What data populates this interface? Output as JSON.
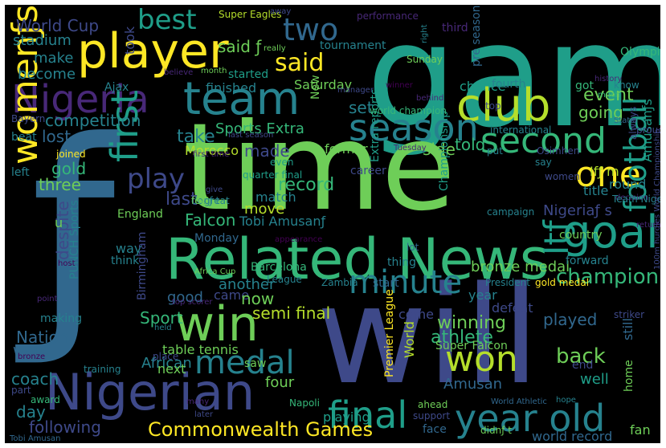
{
  "palette": [
    "#fde725",
    "#b5de2b",
    "#6ece58",
    "#35b779",
    "#1f9e89",
    "#26828e",
    "#31688e",
    "#3e4989",
    "#482878",
    "#440154"
  ],
  "words": [
    {
      "text": "game",
      "color": "#1f9e89"
    },
    {
      "text": "time",
      "color": "#6ece58"
    },
    {
      "text": "will",
      "color": "#3e4989"
    },
    {
      "text": "ƒ",
      "color": "#31688e"
    },
    {
      "text": "Related News",
      "color": "#35b779"
    },
    {
      "text": "player",
      "color": "#fde725"
    },
    {
      "text": "Nigerian",
      "color": "#3e4989"
    },
    {
      "text": "team",
      "color": "#26828e"
    },
    {
      "text": "Nigeria",
      "color": "#482878"
    },
    {
      "text": "club",
      "color": "#b5de2b"
    },
    {
      "text": "win",
      "color": "#6ece58"
    },
    {
      "text": "goal",
      "color": "#1f9e89"
    },
    {
      "text": "final",
      "color": "#1f9e89"
    },
    {
      "text": "year old",
      "color": "#26828e"
    },
    {
      "text": "season",
      "color": "#26828e"
    },
    {
      "text": "second",
      "color": "#35b779"
    },
    {
      "text": "one",
      "color": "#fde725"
    },
    {
      "text": "won",
      "color": "#b5de2b"
    },
    {
      "text": "medal",
      "color": "#26828e"
    },
    {
      "text": "first",
      "color": "#1f9e89"
    },
    {
      "text": "womenƒs",
      "color": "#fde725"
    },
    {
      "text": "minute",
      "color": "#26828e"
    },
    {
      "text": "football",
      "color": "#1f9e89"
    },
    {
      "text": "Itƒ",
      "color": "#1f9e89"
    },
    {
      "text": "best",
      "color": "#1f9e89"
    },
    {
      "text": "two",
      "color": "#31688e"
    },
    {
      "text": "said",
      "color": "#fde725"
    },
    {
      "text": "play",
      "color": "#3e4989"
    },
    {
      "text": "Commonwealth Games",
      "color": "#fde725"
    },
    {
      "text": "champion",
      "color": "#35b779"
    },
    {
      "text": "back",
      "color": "#6ece58"
    },
    {
      "text": "World Cup",
      "color": "#3e4989"
    },
    {
      "text": "stadium",
      "color": "#26828e"
    },
    {
      "text": "said ƒ",
      "color": "#6ece58"
    },
    {
      "text": "tournament",
      "color": "#26828e"
    },
    {
      "text": "make",
      "color": "#26828e"
    },
    {
      "text": "become",
      "color": "#26828e"
    },
    {
      "text": "took",
      "color": "#3e4989"
    },
    {
      "text": "started",
      "color": "#1f9e89"
    },
    {
      "text": "finished",
      "color": "#26828e"
    },
    {
      "text": "Saturday",
      "color": "#6ece58"
    },
    {
      "text": "event",
      "color": "#6ece58"
    },
    {
      "text": "set",
      "color": "#26828e"
    },
    {
      "text": "going",
      "color": "#6ece58"
    },
    {
      "text": "chance",
      "color": "#1f9e89"
    },
    {
      "text": "competition",
      "color": "#26828e"
    },
    {
      "text": "lost",
      "color": "#31688e"
    },
    {
      "text": "Sports Extra",
      "color": "#35b779"
    },
    {
      "text": "side",
      "color": "#6ece58"
    },
    {
      "text": "told",
      "color": "#35b779"
    },
    {
      "text": "made",
      "color": "#3e4989"
    },
    {
      "text": "former",
      "color": "#6ece58"
    },
    {
      "text": "take",
      "color": "#26828e"
    },
    {
      "text": "Morocco",
      "color": "#b5de2b"
    },
    {
      "text": "gold",
      "color": "#35b779"
    },
    {
      "text": "three",
      "color": "#6ece58"
    },
    {
      "text": "last",
      "color": "#3e4989"
    },
    {
      "text": "record",
      "color": "#35b779"
    },
    {
      "text": "match",
      "color": "#26828e"
    },
    {
      "text": "Falcon",
      "color": "#35b779"
    },
    {
      "text": "move",
      "color": "#b5de2b"
    },
    {
      "text": "Tobi Amusanƒ",
      "color": "#26828e"
    },
    {
      "text": "Nigeriaƒ s",
      "color": "#3e4989"
    },
    {
      "text": "Amusanƒs",
      "color": "#1f9e89"
    },
    {
      "text": "good",
      "color": "#31688e"
    },
    {
      "text": "came",
      "color": "#3e4989"
    },
    {
      "text": "now",
      "color": "#6ece58"
    },
    {
      "text": "another",
      "color": "#26828e"
    },
    {
      "text": "semi final",
      "color": "#b5de2b"
    },
    {
      "text": "winning",
      "color": "#6ece58"
    },
    {
      "text": "athlete",
      "color": "#35b779"
    },
    {
      "text": "played",
      "color": "#31688e"
    },
    {
      "text": "bronze medal",
      "color": "#6ece58"
    },
    {
      "text": "Nation",
      "color": "#31688e"
    },
    {
      "text": "want",
      "color": "#31688e"
    },
    {
      "text": "coach",
      "color": "#26828e"
    },
    {
      "text": "day",
      "color": "#26828e"
    },
    {
      "text": "following",
      "color": "#3e4989"
    },
    {
      "text": "African",
      "color": "#26828e"
    },
    {
      "text": "Sport",
      "color": "#35b779"
    },
    {
      "text": "next",
      "color": "#6ece58"
    },
    {
      "text": "four",
      "color": "#6ece58"
    },
    {
      "text": "Amusan",
      "color": "#31688e"
    },
    {
      "text": "well",
      "color": "#1f9e89"
    },
    {
      "text": "still",
      "color": "#31688e"
    },
    {
      "text": "playing",
      "color": "#1f9e89"
    },
    {
      "text": "world record",
      "color": "#31688e"
    },
    {
      "text": "fan",
      "color": "#6ece58"
    },
    {
      "text": "Super Falcon",
      "color": "#6ece58"
    },
    {
      "text": "Barcelona",
      "color": "#35b779"
    },
    {
      "text": "thing",
      "color": "#26828e"
    },
    {
      "text": "year",
      "color": "#26828e"
    },
    {
      "text": "defeat",
      "color": "#3e4989"
    },
    {
      "text": "come",
      "color": "#3e4989"
    },
    {
      "text": "World",
      "color": "#b5de2b"
    },
    {
      "text": "table tennis",
      "color": "#6ece58"
    },
    {
      "text": "way",
      "color": "#26828e"
    },
    {
      "text": "think",
      "color": "#26828e"
    },
    {
      "text": "despite",
      "color": "#3e4989"
    },
    {
      "text": "making",
      "color": "#26828e"
    },
    {
      "text": "Ajax",
      "color": "#26828e"
    },
    {
      "text": "third",
      "color": "#482878"
    },
    {
      "text": "fourth",
      "color": "#26828e"
    },
    {
      "text": "got",
      "color": "#35b779"
    },
    {
      "text": "know",
      "color": "#26828e"
    },
    {
      "text": "Olympic",
      "color": "#35b779"
    },
    {
      "text": "top",
      "color": "#3e4989"
    },
    {
      "text": "round",
      "color": "#26828e"
    },
    {
      "text": "title",
      "color": "#26828e"
    },
    {
      "text": "Ifƒ m",
      "color": "#b5de2b"
    },
    {
      "text": "career",
      "color": "#3e4989"
    },
    {
      "text": "Extra reports",
      "color": "#1f9e89"
    },
    {
      "text": "Championship",
      "color": "#1f9e89"
    },
    {
      "text": "campaign",
      "color": "#26828e"
    },
    {
      "text": "country",
      "color": "#6ece58"
    },
    {
      "text": "forward",
      "color": "#26828e"
    },
    {
      "text": "lot",
      "color": "#31688e"
    },
    {
      "text": "New",
      "color": "#6ece58"
    },
    {
      "text": "England",
      "color": "#6ece58"
    },
    {
      "text": "Monday",
      "color": "#31688e"
    },
    {
      "text": "Birmingham",
      "color": "#3e4989"
    },
    {
      "text": "PUNCH Sports",
      "color": "#26828e"
    },
    {
      "text": "u",
      "color": "#6ece58"
    },
    {
      "text": "beat",
      "color": "#26828e"
    },
    {
      "text": "left",
      "color": "#26828e"
    },
    {
      "text": "Bayern",
      "color": "#3e4989"
    },
    {
      "text": "Super Eagles",
      "color": "#b5de2b"
    },
    {
      "text": "away",
      "color": "#3e4989"
    },
    {
      "text": "performance",
      "color": "#482878"
    },
    {
      "text": "really",
      "color": "#6ece58"
    },
    {
      "text": "month",
      "color": "#6ece58"
    },
    {
      "text": "believe",
      "color": "#482878"
    },
    {
      "text": "manager",
      "color": "#3e4989"
    },
    {
      "text": "winner",
      "color": "#440154"
    },
    {
      "text": "right",
      "color": "#26828e"
    },
    {
      "text": "pre season",
      "color": "#31688e"
    },
    {
      "text": "Sunday",
      "color": "#6ece58"
    },
    {
      "text": "history",
      "color": "#482878"
    },
    {
      "text": "much",
      "color": "#35b779"
    },
    {
      "text": "behind",
      "color": "#482878"
    },
    {
      "text": "world champion",
      "color": "#35b779"
    },
    {
      "text": "international",
      "color": "#26828e"
    },
    {
      "text": "State",
      "color": "#31688e"
    },
    {
      "text": "proud",
      "color": "#3e4989"
    },
    {
      "text": "always",
      "color": "#3e4989"
    },
    {
      "text": "put",
      "color": "#26828e"
    },
    {
      "text": "last season",
      "color": "#3e4989"
    },
    {
      "text": "Tuesday",
      "color": "#482878"
    },
    {
      "text": "say",
      "color": "#26828e"
    },
    {
      "text": "Osimhen",
      "color": "#3e4989"
    },
    {
      "text": "women",
      "color": "#3e4989"
    },
    {
      "text": "joined",
      "color": "#fde725"
    },
    {
      "text": "first time",
      "color": "#482878"
    },
    {
      "text": "even",
      "color": "#1f9e89"
    },
    {
      "text": "quarter final",
      "color": "#1f9e89"
    },
    {
      "text": "give",
      "color": "#3e4989"
    },
    {
      "text": "donƒ t",
      "color": "#26828e"
    },
    {
      "text": "feat",
      "color": "#6ece58"
    },
    {
      "text": "great",
      "color": "#26828e"
    },
    {
      "text": "decision",
      "color": "#482878"
    },
    {
      "text": "Team Nigeria",
      "color": "#26828e"
    },
    {
      "text": "return",
      "color": "#482878"
    },
    {
      "text": "appearance",
      "color": "#440154"
    },
    {
      "text": "League",
      "color": "#26828e"
    },
    {
      "text": "Africa Cup",
      "color": "#6ece58"
    },
    {
      "text": "host",
      "color": "#440154"
    },
    {
      "text": "point",
      "color": "#482878"
    },
    {
      "text": "Zambia",
      "color": "#26828e"
    },
    {
      "text": "start",
      "color": "#31688e"
    },
    {
      "text": "President",
      "color": "#26828e"
    },
    {
      "text": "gold medal",
      "color": "#fde725"
    },
    {
      "text": "top scorer",
      "color": "#482878"
    },
    {
      "text": "held",
      "color": "#26828e"
    },
    {
      "text": "place",
      "color": "#3e4989"
    },
    {
      "text": "bronze",
      "color": "#440154"
    },
    {
      "text": "training",
      "color": "#26828e"
    },
    {
      "text": "part",
      "color": "#3e4989"
    },
    {
      "text": "award",
      "color": "#35b779"
    },
    {
      "text": "saw",
      "color": "#6ece58"
    },
    {
      "text": "Premier League",
      "color": "#fde725"
    },
    {
      "text": "striker",
      "color": "#3e4989"
    },
    {
      "text": "end",
      "color": "#3e4989"
    },
    {
      "text": "100m hurdles World Championship",
      "color": "#3e4989"
    },
    {
      "text": "World Athletic",
      "color": "#31688e"
    },
    {
      "text": "hope",
      "color": "#26828e"
    },
    {
      "text": "home",
      "color": "#6ece58"
    },
    {
      "text": "ahead",
      "color": "#6ece58"
    },
    {
      "text": "support",
      "color": "#3e4989"
    },
    {
      "text": "face",
      "color": "#31688e"
    },
    {
      "text": "didnƒ t",
      "color": "#6ece58"
    },
    {
      "text": "Napoli",
      "color": "#35b779"
    },
    {
      "text": "many",
      "color": "#482878"
    },
    {
      "text": "later",
      "color": "#3e4989"
    },
    {
      "text": "Tobi Amusan",
      "color": "#31688e"
    }
  ]
}
